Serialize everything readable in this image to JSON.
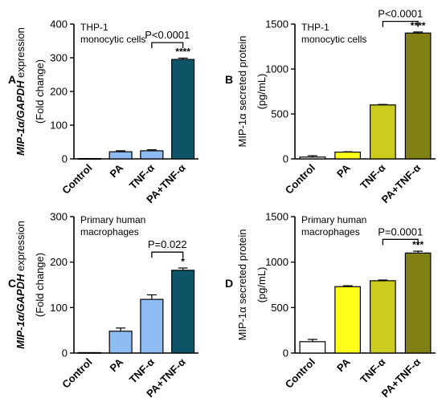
{
  "chart_data": [
    {
      "panel": "A",
      "type": "bar",
      "annotation": "THP-1\nmonocytic cells",
      "ylabel": [
        "MIP-1α/GAPDH expression",
        "(Fold change)"
      ],
      "ylabel_italic_part": "MIP-1α/GAPDH",
      "ylim": [
        0,
        400
      ],
      "yticks": [
        0,
        100,
        200,
        300,
        400
      ],
      "categories": [
        "Control",
        "PA",
        "TNF-α",
        "PA+TNF-α"
      ],
      "values": [
        1,
        21,
        24,
        295
      ],
      "errors": [
        0.5,
        3,
        3,
        4
      ],
      "colors": [
        "#ffffff",
        "#8fbcf2",
        "#8fbcf2",
        "#0d5566"
      ],
      "significance": [
        "",
        "",
        "",
        "****"
      ],
      "bracket": {
        "from": 2,
        "to": 3,
        "label": "P<0.0001",
        "y": 345
      }
    },
    {
      "panel": "B",
      "type": "bar",
      "annotation": "THP-1\nmonocytic cells",
      "ylabel": [
        "MIP-1α secreted protein",
        "(pg/mL)"
      ],
      "ylim": [
        0,
        1500
      ],
      "yticks": [
        0,
        500,
        1000,
        1500
      ],
      "categories": [
        "Control",
        "PA",
        "TNF-α",
        "PA+TNF-α"
      ],
      "values": [
        20,
        75,
        600,
        1400
      ],
      "errors": [
        15,
        4,
        6,
        12
      ],
      "colors": [
        "#ffffff",
        "#ffff1a",
        "#cccc1f",
        "#808014"
      ],
      "significance": [
        "",
        "",
        "",
        "****"
      ],
      "bracket": {
        "from": 2,
        "to": 3,
        "label": "P<0.0001",
        "y": 1530
      }
    },
    {
      "panel": "C",
      "type": "bar",
      "annotation": "Primary human\nmacrophages",
      "ylabel": [
        "MIP-1α/GAPDH expression",
        "(Fold change)"
      ],
      "ylabel_italic_part": "MIP-1α/GAPDH",
      "ylim": [
        0,
        300
      ],
      "yticks": [
        0,
        100,
        200,
        300
      ],
      "categories": [
        "Control",
        "PA",
        "TNF-α",
        "PA+TNF-α"
      ],
      "values": [
        1,
        48,
        118,
        182
      ],
      "errors": [
        0.5,
        7,
        10,
        5
      ],
      "colors": [
        "#ffffff",
        "#8fbcf2",
        "#8fbcf2",
        "#0d5566"
      ],
      "significance": [
        "",
        "",
        "",
        "*"
      ],
      "bracket": {
        "from": 2,
        "to": 3,
        "label": "P=0.022",
        "y": 222
      }
    },
    {
      "panel": "D",
      "type": "bar",
      "annotation": "Primary human\nmacrophages",
      "ylabel": [
        "MIP-1α secreted protein",
        "(pg/mL)"
      ],
      "ylim": [
        0,
        1500
      ],
      "yticks": [
        0,
        500,
        1000,
        1500
      ],
      "categories": [
        "Control",
        "PA",
        "TNF-α",
        "PA+TNF-α"
      ],
      "values": [
        125,
        730,
        795,
        1100
      ],
      "errors": [
        25,
        10,
        8,
        20
      ],
      "colors": [
        "#ffffff",
        "#ffff1a",
        "#cccc1f",
        "#808014"
      ],
      "significance": [
        "",
        "",
        "",
        "***"
      ],
      "bracket": {
        "from": 2,
        "to": 3,
        "label": "P=0.0001",
        "y": 1250
      }
    }
  ]
}
